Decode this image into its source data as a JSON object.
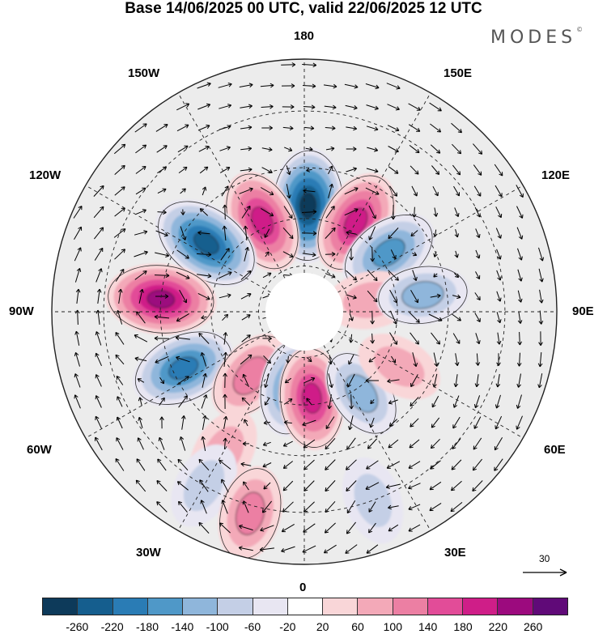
{
  "title": "Base 14/06/2025 00 UTC, valid 22/06/2025 12 UTC",
  "brand": "MODES",
  "brand_mark": "©",
  "longitude_labels": {
    "top": "180",
    "bottom": "0",
    "left": "90W",
    "right": "90E",
    "upper_left_1": "150W",
    "upper_left_2": "120W",
    "lower_left_1": "60W",
    "lower_left_2": "30W",
    "upper_right_1": "150E",
    "upper_right_2": "120E",
    "lower_right_1": "60E",
    "lower_right_2": "30E"
  },
  "reference_vector": "30",
  "colorbar": {
    "colors": [
      "#0d3a5a",
      "#155e8e",
      "#2a7cb5",
      "#4f98c8",
      "#8fb6db",
      "#c4cfe6",
      "#e8e6f2",
      "#ffffff",
      "#f9d6d8",
      "#f3a9b8",
      "#ec7fa3",
      "#e24c98",
      "#cf1e88",
      "#9c0a7e",
      "#600a78"
    ],
    "tick_labels": [
      "-260",
      "-220",
      "-180",
      "-140",
      "-100",
      "-60",
      "-20",
      "20",
      "60",
      "100",
      "140",
      "180",
      "220",
      "260"
    ]
  },
  "anomaly_blobs": [
    {
      "lon": 178,
      "lat": 56,
      "value": -260
    },
    {
      "lon": 150,
      "lat": 57,
      "value": 200
    },
    {
      "lon": -155,
      "lat": 58,
      "value": 190
    },
    {
      "lon": 125,
      "lat": 57,
      "value": -170
    },
    {
      "lon": -125,
      "lat": 52,
      "value": -240
    },
    {
      "lon": 100,
      "lat": 68,
      "value": 90
    },
    {
      "lon": 98,
      "lat": 52,
      "value": -110
    },
    {
      "lon": -95,
      "lat": 45,
      "value": 230
    },
    {
      "lon": -65,
      "lat": 48,
      "value": -200
    },
    {
      "lon": -40,
      "lat": 63,
      "value": 130
    },
    {
      "lon": -10,
      "lat": 65,
      "value": -140
    },
    {
      "lon": 5,
      "lat": 62,
      "value": 180
    },
    {
      "lon": 35,
      "lat": 58,
      "value": -110
    },
    {
      "lon": 60,
      "lat": 55,
      "value": 75
    },
    {
      "lon": -30,
      "lat": 40,
      "value": 90
    },
    {
      "lon": -30,
      "lat": 30,
      "value": -80
    },
    {
      "lon": -15,
      "lat": 28,
      "value": 130
    },
    {
      "lon": 20,
      "lat": 30,
      "value": -80
    }
  ]
}
